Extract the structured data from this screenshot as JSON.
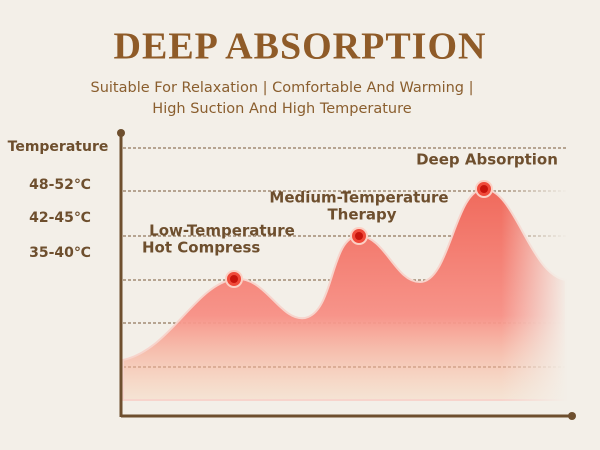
{
  "header": {
    "title": "DEEP ABSORPTION",
    "subtitle": [
      "Suitable For Relaxation | Comfortable And Warming |",
      "High Suction And High Temperature"
    ]
  },
  "axis": {
    "label": "Temperature",
    "levels": [
      "48-52℃",
      "42-45℃",
      "35-40℃"
    ]
  },
  "peaks": [
    {
      "label": [
        "Low-Temperature",
        "Hot Compress"
      ]
    },
    {
      "label": [
        "Medium-Temperature",
        "Therapy"
      ]
    },
    {
      "label": [
        "Deep Absorption"
      ]
    }
  ]
}
